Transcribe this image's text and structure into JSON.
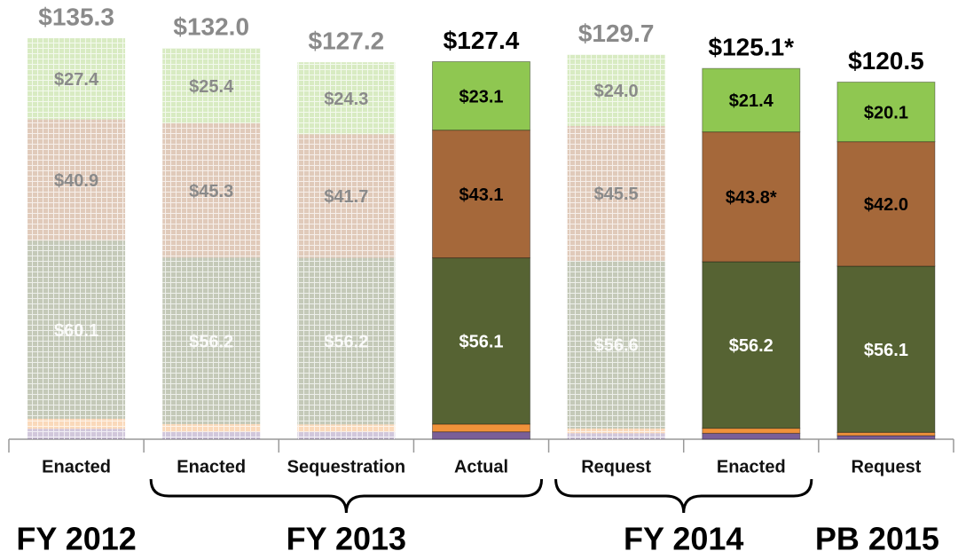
{
  "chart_data": {
    "type": "stacked_bar",
    "categories": [
      "Enacted",
      "Enacted",
      "Sequestration",
      "Actual",
      "Request",
      "Enacted",
      "Request"
    ],
    "faded": [
      true,
      true,
      true,
      false,
      true,
      false,
      false
    ],
    "groups": [
      {
        "label": "FY 2012",
        "start": 0,
        "end": 0
      },
      {
        "label": "FY 2013",
        "start": 1,
        "end": 3
      },
      {
        "label": "FY 2014",
        "start": 4,
        "end": 5
      },
      {
        "label": "PB 2015",
        "start": 6,
        "end": 6
      }
    ],
    "series": [
      {
        "color": "#7a5f98",
        "values": [
          3.5,
          2.5,
          2.5,
          2.5,
          2.0,
          2.0,
          1.2
        ]
      },
      {
        "color": "#f0923a",
        "values": [
          3.4,
          2.6,
          2.5,
          2.6,
          1.6,
          1.7,
          1.1
        ]
      },
      {
        "color": "#566333",
        "text_color": "#ffffff",
        "values": [
          60.1,
          56.2,
          56.2,
          56.1,
          56.6,
          56.2,
          56.1
        ],
        "value_labels": [
          "$60.1",
          "$56.2",
          "$56.2",
          "$56.1",
          "$56.6",
          "$56.2",
          "$56.1"
        ]
      },
      {
        "color": "#a5683a",
        "text_color": "#000000",
        "values": [
          40.9,
          45.3,
          41.7,
          43.1,
          45.5,
          43.8,
          42.0
        ],
        "value_labels": [
          "$40.9",
          "$45.3",
          "$41.7",
          "$43.1",
          "$45.5",
          "$43.8*",
          "$42.0"
        ]
      },
      {
        "color": "#8fc751",
        "text_color": "#000000",
        "values": [
          27.4,
          25.4,
          24.3,
          23.1,
          24.0,
          21.4,
          20.1
        ],
        "value_labels": [
          "$27.4",
          "$25.4",
          "$24.3",
          "$23.1",
          "$24.0",
          "$21.4",
          "$20.1"
        ]
      }
    ],
    "totals": [
      135.3,
      132.0,
      127.2,
      127.4,
      129.7,
      125.1,
      120.5
    ],
    "total_labels": [
      "$135.3",
      "$132.0",
      "$127.2",
      "$127.4",
      "$129.7",
      "$125.1*",
      "$120.5"
    ],
    "ylim": [
      0,
      136
    ]
  }
}
